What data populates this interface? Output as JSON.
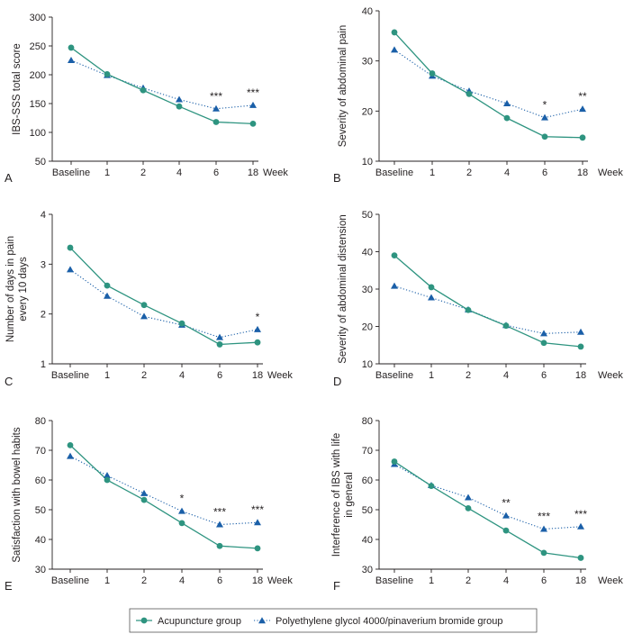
{
  "colors": {
    "acupuncture": "#2e9480",
    "peg": "#1a5fa8",
    "axis": "#231f20",
    "legend_border": "#555555"
  },
  "legend": {
    "acupuncture_label": "Acupuncture group",
    "peg_label": "Polyethylene glycol 4000/pinaverium bromide group"
  },
  "chart_data": [
    {
      "panel": "A",
      "type": "line",
      "ylabel": [
        "IBS-SSS total score"
      ],
      "categories": [
        "Baseline",
        "1",
        "2",
        "4",
        "6",
        "18"
      ],
      "x_unit": "Week",
      "ylim": [
        50,
        300
      ],
      "yticks": [
        50,
        100,
        150,
        200,
        250,
        300
      ],
      "series": [
        {
          "name": "Acupuncture group",
          "values": [
            247,
            201,
            173,
            145,
            118,
            115
          ]
        },
        {
          "name": "Polyethylene glycol 4000/pinaverium bromide group",
          "values": [
            225,
            199,
            177,
            157,
            141,
            147
          ]
        }
      ],
      "annotations": [
        {
          "category": "6",
          "text": "***"
        },
        {
          "category": "18",
          "text": "***"
        }
      ]
    },
    {
      "panel": "B",
      "type": "line",
      "ylabel": [
        "Severity of abdominal pain"
      ],
      "categories": [
        "Baseline",
        "1",
        "2",
        "4",
        "6",
        "18"
      ],
      "x_unit": "Week",
      "ylim": [
        10,
        40
      ],
      "yticks": [
        10,
        20,
        30,
        40
      ],
      "series": [
        {
          "name": "Acupuncture group",
          "values": [
            35.7,
            27.5,
            23.4,
            18.6,
            14.9,
            14.7
          ]
        },
        {
          "name": "Polyethylene glycol 4000/pinaverium bromide group",
          "values": [
            32.2,
            27.0,
            24.0,
            21.5,
            18.7,
            20.4
          ]
        }
      ],
      "annotations": [
        {
          "category": "6",
          "text": "*"
        },
        {
          "category": "18",
          "text": "**"
        }
      ]
    },
    {
      "panel": "C",
      "type": "line",
      "ylabel": [
        "Number of days in pain",
        "every 10 days"
      ],
      "categories": [
        "Baseline",
        "1",
        "2",
        "4",
        "6",
        "18"
      ],
      "x_unit": "Week",
      "ylim": [
        1,
        4
      ],
      "yticks": [
        1,
        2,
        3,
        4
      ],
      "series": [
        {
          "name": "Acupuncture group",
          "values": [
            3.33,
            2.57,
            2.18,
            1.81,
            1.39,
            1.43
          ]
        },
        {
          "name": "Polyethylene glycol 4000/pinaverium bromide group",
          "values": [
            2.89,
            2.36,
            1.95,
            1.78,
            1.53,
            1.69
          ]
        }
      ],
      "annotations": [
        {
          "category": "18",
          "text": "*"
        }
      ]
    },
    {
      "panel": "D",
      "type": "line",
      "ylabel": [
        "Severity of abdominal distension"
      ],
      "categories": [
        "Baseline",
        "1",
        "2",
        "4",
        "6",
        "18"
      ],
      "x_unit": "Week",
      "ylim": [
        10,
        50
      ],
      "yticks": [
        10,
        20,
        30,
        40,
        50
      ],
      "series": [
        {
          "name": "Acupuncture group",
          "values": [
            39.0,
            30.5,
            24.4,
            20.2,
            15.6,
            14.6
          ]
        },
        {
          "name": "Polyethylene glycol 4000/pinaverium bromide group",
          "values": [
            30.8,
            27.7,
            24.5,
            20.3,
            18.1,
            18.5
          ]
        }
      ],
      "annotations": []
    },
    {
      "panel": "E",
      "type": "line",
      "ylabel": [
        "Satisfaction with bowel habits"
      ],
      "categories": [
        "Baseline",
        "1",
        "2",
        "4",
        "6",
        "18"
      ],
      "x_unit": "Week",
      "ylim": [
        30,
        80
      ],
      "yticks": [
        30,
        40,
        50,
        60,
        70,
        80
      ],
      "series": [
        {
          "name": "Acupuncture group",
          "values": [
            71.7,
            60.0,
            53.3,
            45.5,
            37.8,
            37.0
          ]
        },
        {
          "name": "Polyethylene glycol 4000/pinaverium bromide group",
          "values": [
            68.0,
            61.5,
            55.5,
            49.5,
            45.0,
            45.7
          ]
        }
      ],
      "annotations": [
        {
          "category": "4",
          "text": "*"
        },
        {
          "category": "6",
          "text": "***"
        },
        {
          "category": "18",
          "text": "***"
        }
      ]
    },
    {
      "panel": "F",
      "type": "line",
      "ylabel": [
        "Interference of IBS with life",
        "in general"
      ],
      "categories": [
        "Baseline",
        "1",
        "2",
        "4",
        "6",
        "18"
      ],
      "x_unit": "Week",
      "ylim": [
        30,
        80
      ],
      "yticks": [
        30,
        40,
        50,
        60,
        70,
        80
      ],
      "series": [
        {
          "name": "Acupuncture group",
          "values": [
            66.2,
            58.0,
            50.5,
            43.0,
            35.5,
            33.8
          ]
        },
        {
          "name": "Polyethylene glycol 4000/pinaverium bromide group",
          "values": [
            65.3,
            58.2,
            54.1,
            48.0,
            43.5,
            44.3
          ]
        }
      ],
      "annotations": [
        {
          "category": "4",
          "text": "**"
        },
        {
          "category": "6",
          "text": "***"
        },
        {
          "category": "18",
          "text": "***"
        }
      ]
    }
  ]
}
